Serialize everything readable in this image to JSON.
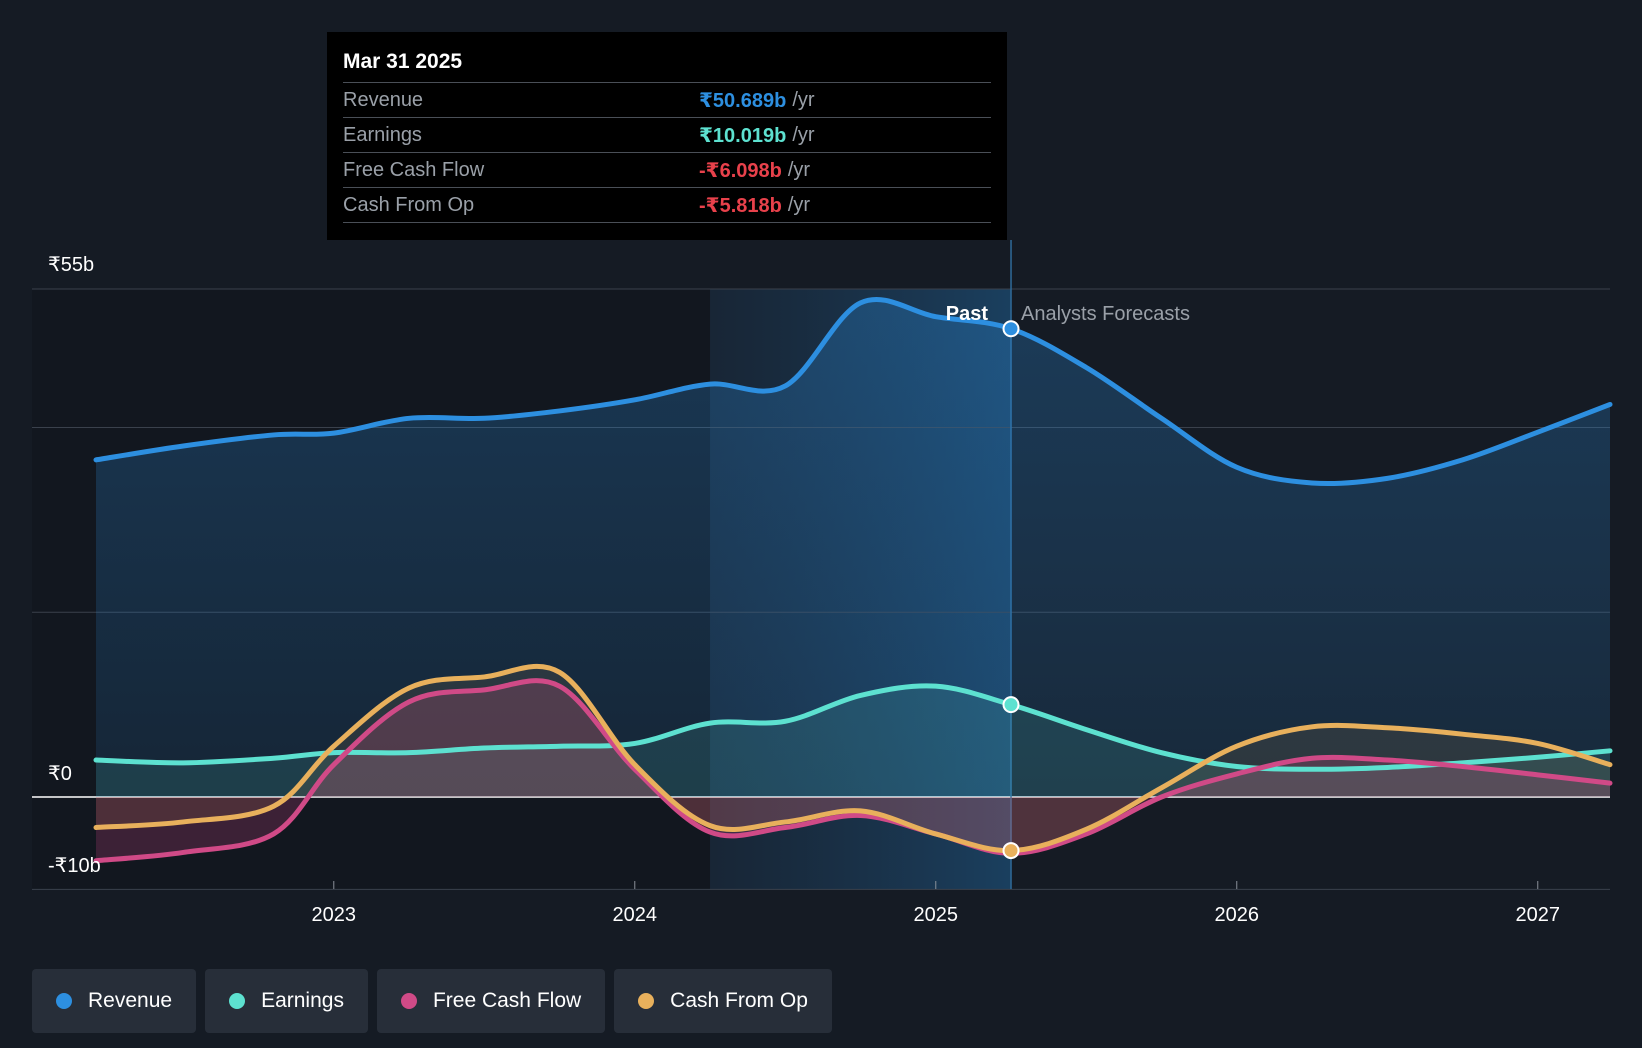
{
  "chart_data": {
    "type": "area",
    "currency_prefix": "₹",
    "y_axis": {
      "min": -10,
      "max": 55,
      "labels": [
        "₹55b",
        "₹0",
        "-₹10b"
      ],
      "label_values": [
        55,
        0,
        -10
      ],
      "gridlines": [
        55,
        40,
        20,
        0,
        -10
      ]
    },
    "x_axis": {
      "min": 2022.21,
      "max": 2027.24,
      "ticks": [
        "2023",
        "2024",
        "2025",
        "2026",
        "2027"
      ],
      "tick_values": [
        2023,
        2024,
        2025,
        2026,
        2027
      ]
    },
    "past_region": {
      "start": 2024.25,
      "end": 2025.25
    },
    "divider_x": 2025.25,
    "past_label": "Past",
    "forecast_label": "Analysts Forecasts",
    "series": [
      {
        "name": "Revenue",
        "color": "#2d8fe0",
        "past": [
          [
            2022.21,
            36.5
          ],
          [
            2022.5,
            38
          ],
          [
            2022.8,
            39.2
          ],
          [
            2023.0,
            39.4
          ],
          [
            2023.25,
            41
          ],
          [
            2023.5,
            41
          ],
          [
            2023.75,
            41.8
          ],
          [
            2024.0,
            43
          ],
          [
            2024.25,
            44.7
          ],
          [
            2024.5,
            44.5
          ],
          [
            2024.75,
            53.5
          ],
          [
            2025.0,
            52
          ],
          [
            2025.25,
            50.7
          ]
        ],
        "forecast": [
          [
            2025.25,
            50.7
          ],
          [
            2025.5,
            46.5
          ],
          [
            2025.75,
            41
          ],
          [
            2026.0,
            35.7
          ],
          [
            2026.25,
            34
          ],
          [
            2026.5,
            34.5
          ],
          [
            2026.75,
            36.5
          ],
          [
            2027.0,
            39.5
          ],
          [
            2027.24,
            42.5
          ]
        ]
      },
      {
        "name": "Earnings",
        "color": "#5de1d0",
        "past": [
          [
            2022.21,
            4
          ],
          [
            2022.5,
            3.7
          ],
          [
            2022.8,
            4.2
          ],
          [
            2023.0,
            4.8
          ],
          [
            2023.25,
            4.8
          ],
          [
            2023.5,
            5.3
          ],
          [
            2023.75,
            5.5
          ],
          [
            2024.0,
            5.8
          ],
          [
            2024.25,
            8
          ],
          [
            2024.5,
            8.2
          ],
          [
            2024.75,
            11
          ],
          [
            2025.0,
            12
          ],
          [
            2025.25,
            10
          ]
        ],
        "forecast": [
          [
            2025.25,
            10
          ],
          [
            2025.5,
            7.3
          ],
          [
            2025.75,
            4.8
          ],
          [
            2026.0,
            3.3
          ],
          [
            2026.25,
            3
          ],
          [
            2026.5,
            3.2
          ],
          [
            2026.75,
            3.7
          ],
          [
            2027.0,
            4.3
          ],
          [
            2027.24,
            5
          ]
        ]
      },
      {
        "name": "Free Cash Flow",
        "color": "#d04a87",
        "past": [
          [
            2022.21,
            -6.9
          ],
          [
            2022.5,
            -6
          ],
          [
            2022.8,
            -4
          ],
          [
            2023.0,
            3.5
          ],
          [
            2023.25,
            10.3
          ],
          [
            2023.5,
            11.6
          ],
          [
            2023.75,
            12
          ],
          [
            2024.0,
            3
          ],
          [
            2024.25,
            -3.8
          ],
          [
            2024.5,
            -3.3
          ],
          [
            2024.75,
            -2
          ],
          [
            2025.0,
            -4
          ],
          [
            2025.25,
            -6.1
          ]
        ],
        "forecast": [
          [
            2025.25,
            -6.1
          ],
          [
            2025.5,
            -4
          ],
          [
            2025.75,
            0
          ],
          [
            2026.0,
            2.5
          ],
          [
            2026.25,
            4.2
          ],
          [
            2026.5,
            4
          ],
          [
            2026.75,
            3.3
          ],
          [
            2027.0,
            2.4
          ],
          [
            2027.24,
            1.5
          ]
        ]
      },
      {
        "name": "Cash From Op",
        "color": "#e8b05c",
        "past": [
          [
            2022.21,
            -3.3
          ],
          [
            2022.5,
            -2.7
          ],
          [
            2022.8,
            -1
          ],
          [
            2023.0,
            5.5
          ],
          [
            2023.25,
            11.8
          ],
          [
            2023.5,
            13
          ],
          [
            2023.75,
            13.5
          ],
          [
            2024.0,
            3.5
          ],
          [
            2024.25,
            -3.1
          ],
          [
            2024.5,
            -2.7
          ],
          [
            2024.75,
            -1.5
          ],
          [
            2025.0,
            -4
          ],
          [
            2025.25,
            -5.8
          ]
        ],
        "forecast": [
          [
            2025.25,
            -5.8
          ],
          [
            2025.5,
            -3.5
          ],
          [
            2025.75,
            1
          ],
          [
            2026.0,
            5.5
          ],
          [
            2026.25,
            7.6
          ],
          [
            2026.5,
            7.5
          ],
          [
            2026.75,
            6.8
          ],
          [
            2027.0,
            5.8
          ],
          [
            2027.24,
            3.5
          ]
        ]
      }
    ]
  },
  "tooltip": {
    "date": "Mar 31 2025",
    "unit": "/yr",
    "rows": [
      {
        "label": "Revenue",
        "value": "₹50.689b",
        "color": "#2d8fe0"
      },
      {
        "label": "Earnings",
        "value": "₹10.019b",
        "color": "#5de1d0"
      },
      {
        "label": "Free Cash Flow",
        "value": "-₹6.098b",
        "color": "#e8414b"
      },
      {
        "label": "Cash From Op",
        "value": "-₹5.818b",
        "color": "#e8414b"
      }
    ]
  },
  "legend": [
    {
      "label": "Revenue",
      "color": "#2d8fe0"
    },
    {
      "label": "Earnings",
      "color": "#5de1d0"
    },
    {
      "label": "Free Cash Flow",
      "color": "#d04a87"
    },
    {
      "label": "Cash From Op",
      "color": "#e8b05c"
    }
  ]
}
